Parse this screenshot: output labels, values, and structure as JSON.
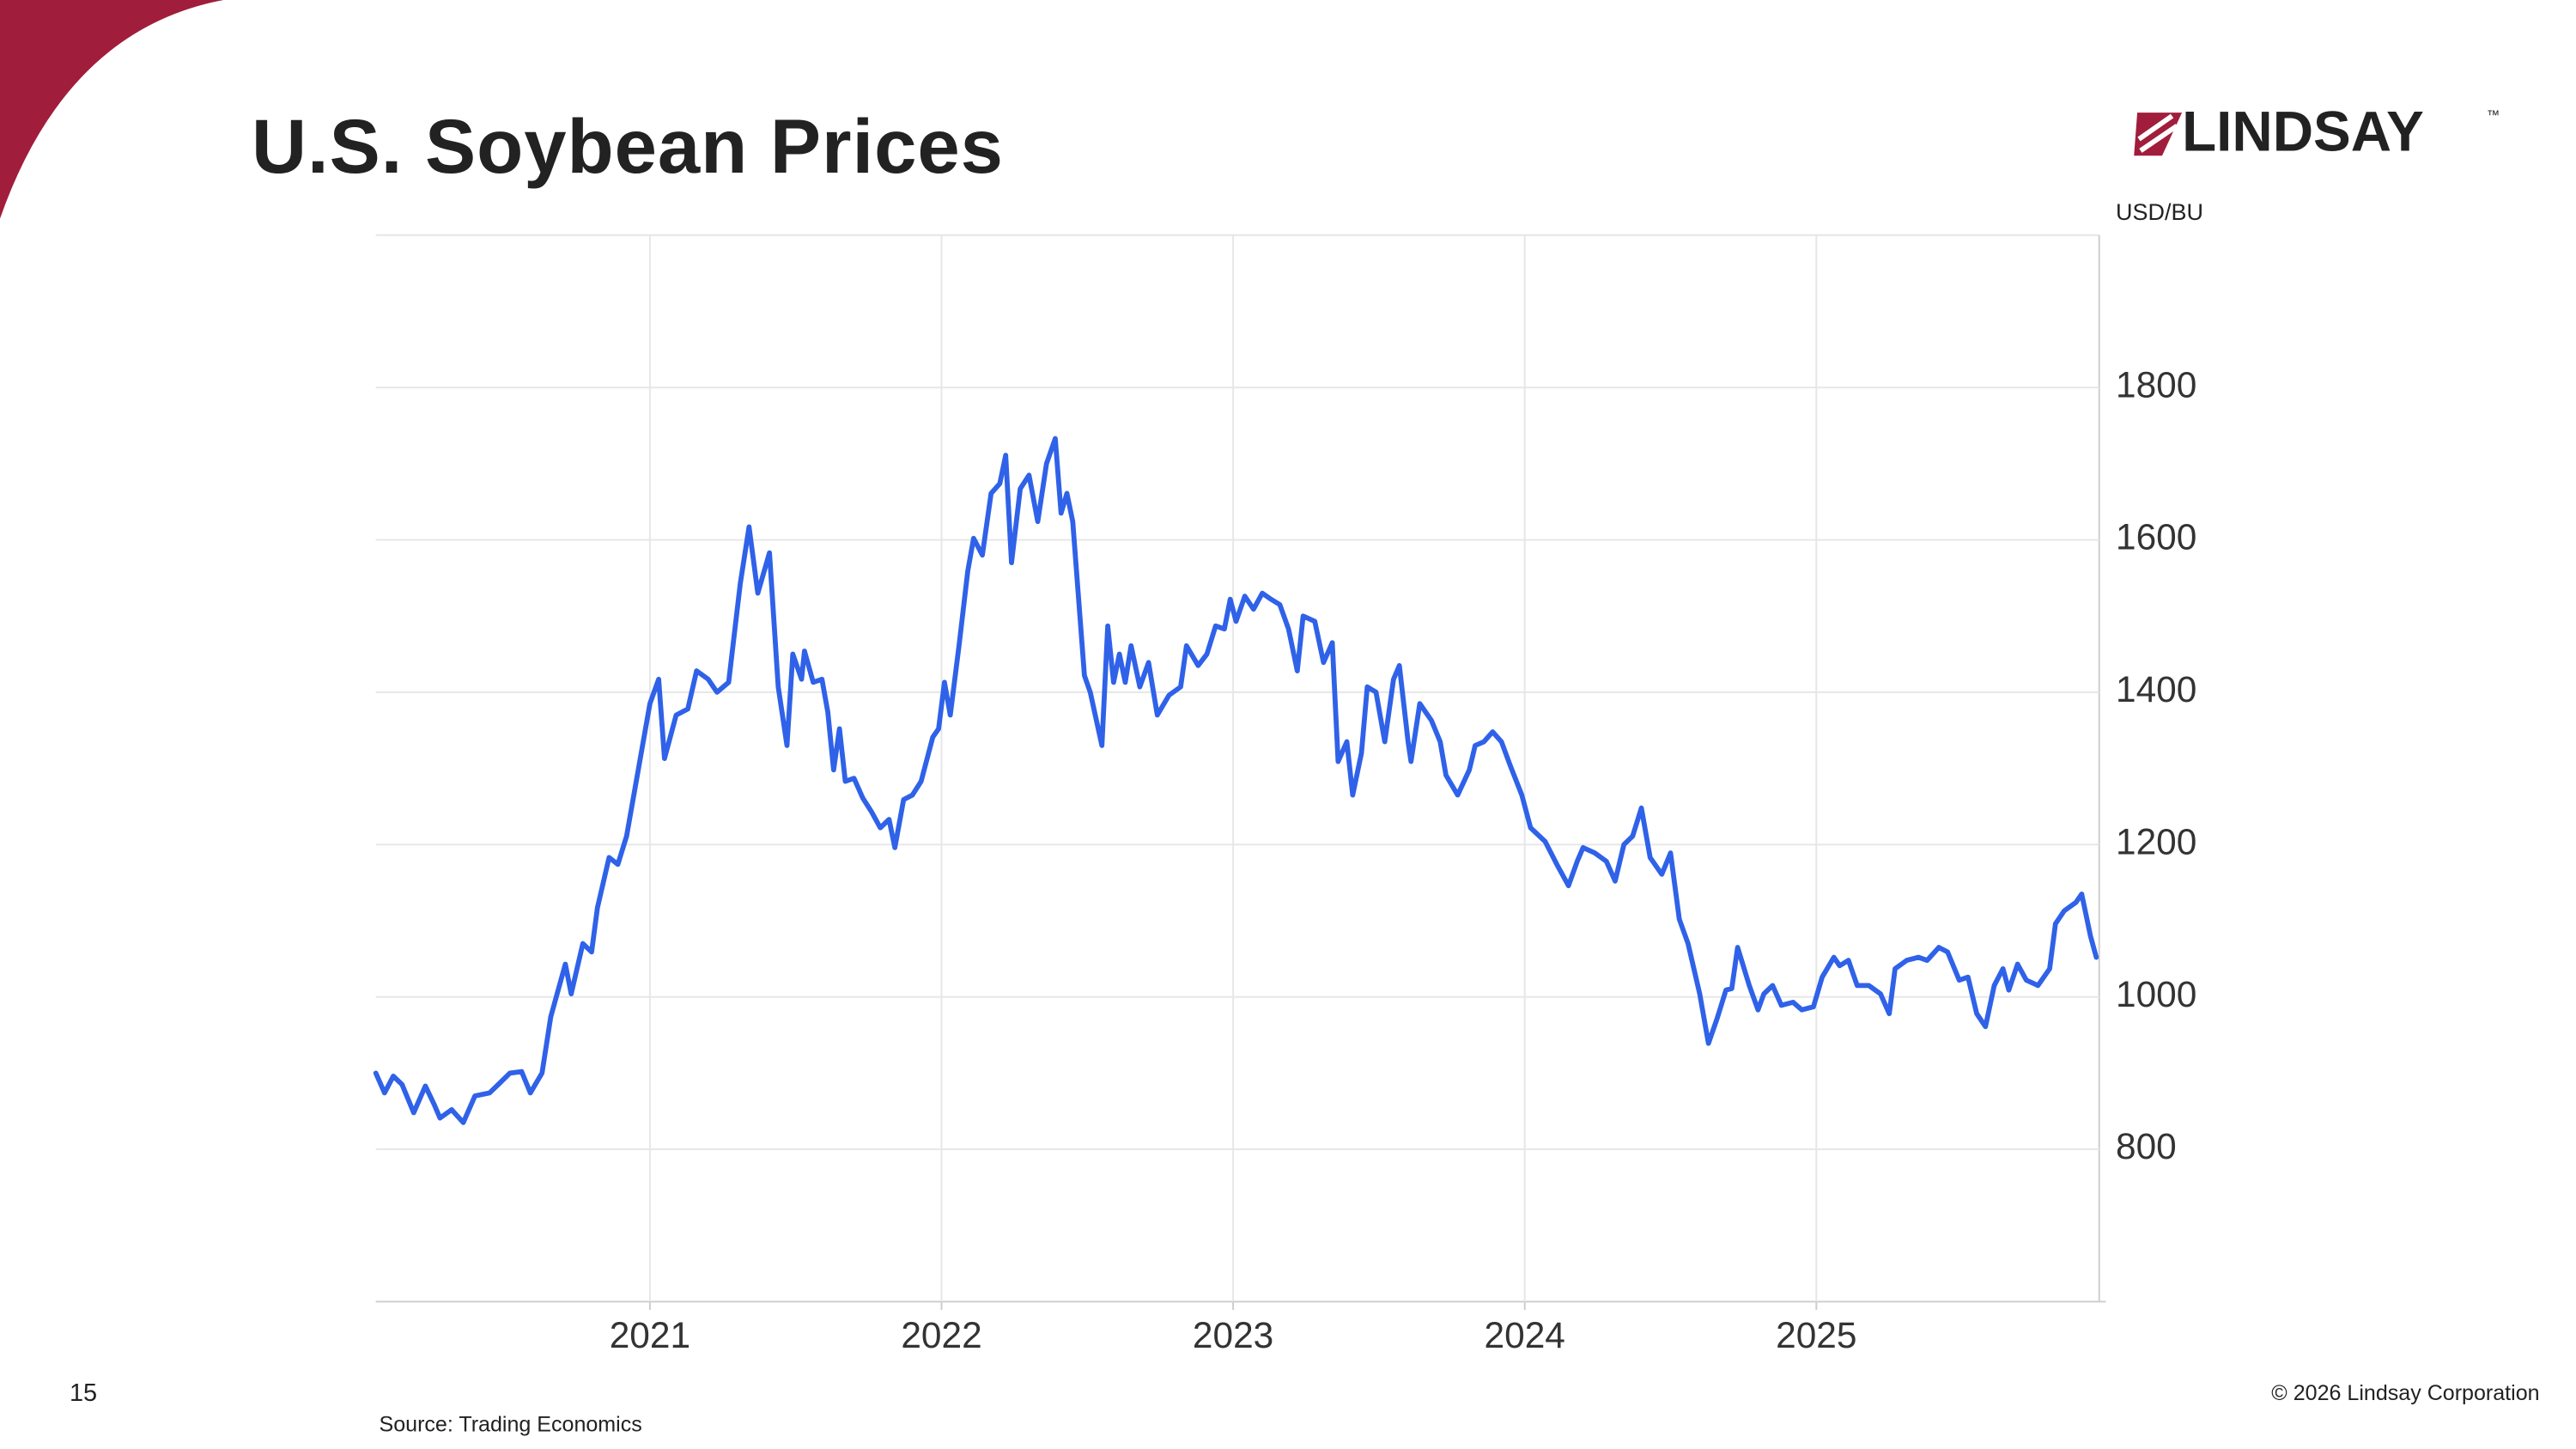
{
  "slide": {
    "logo": "LINDSAY",
    "logo_mark": "™",
    "page_number": "15",
    "copyright": "© 2026 Lindsay Corporation",
    "source": "Source: Trading Economics"
  },
  "chart_data": {
    "type": "line",
    "title": "U.S. Soybean Prices",
    "y_label": "USD/BU",
    "x": [
      2020.06,
      2020.09,
      2020.12,
      2020.15,
      2020.19,
      2020.23,
      2020.26,
      2020.28,
      2020.32,
      2020.36,
      2020.4,
      2020.45,
      2020.48,
      2020.52,
      2020.56,
      2020.59,
      2020.63,
      2020.66,
      2020.71,
      2020.73,
      2020.77,
      2020.8,
      2020.82,
      2020.86,
      2020.89,
      2020.92,
      2020.96,
      2021.0,
      2021.03,
      2021.05,
      2021.09,
      2021.13,
      2021.16,
      2021.2,
      2021.23,
      2021.27,
      2021.31,
      2021.34,
      2021.37,
      2021.41,
      2021.44,
      2021.47,
      2021.49,
      2021.52,
      2021.53,
      2021.56,
      2021.59,
      2021.61,
      2021.63,
      2021.65,
      2021.67,
      2021.7,
      2021.73,
      2021.76,
      2021.79,
      2021.82,
      2021.84,
      2021.87,
      2021.9,
      2021.93,
      2021.97,
      2021.99,
      2022.01,
      2022.03,
      2022.06,
      2022.09,
      2022.11,
      2022.14,
      2022.17,
      2022.2,
      2022.22,
      2022.24,
      2022.27,
      2022.3,
      2022.33,
      2022.36,
      2022.39,
      2022.41,
      2022.43,
      2022.45,
      2022.49,
      2022.51,
      2022.55,
      2022.57,
      2022.59,
      2022.61,
      2022.63,
      2022.65,
      2022.68,
      2022.71,
      2022.74,
      2022.78,
      2022.82,
      2022.84,
      2022.88,
      2022.91,
      2022.94,
      2022.97,
      2022.99,
      2023.01,
      2023.04,
      2023.07,
      2023.1,
      2023.13,
      2023.16,
      2023.19,
      2023.22,
      2023.24,
      2023.28,
      2023.31,
      2023.34,
      2023.36,
      2023.39,
      2023.41,
      2023.44,
      2023.46,
      2023.49,
      2023.52,
      2023.55,
      2023.57,
      2023.6,
      2023.61,
      2023.64,
      2023.68,
      2023.71,
      2023.73,
      2023.77,
      2023.81,
      2023.83,
      2023.86,
      2023.89,
      2023.92,
      2023.95,
      2023.99,
      2024.02,
      2024.07,
      2024.11,
      2024.15,
      2024.18,
      2024.2,
      2024.24,
      2024.28,
      2024.31,
      2024.34,
      2024.37,
      2024.4,
      2024.43,
      2024.47,
      2024.5,
      2024.53,
      2024.56,
      2024.6,
      2024.63,
      2024.66,
      2024.69,
      2024.71,
      2024.73,
      2024.77,
      2024.8,
      2024.82,
      2024.85,
      2024.88,
      2024.92,
      2024.95,
      2024.99,
      2025.02,
      2025.06,
      2025.08,
      2025.11,
      2025.14,
      2025.18,
      2025.22,
      2025.25,
      2025.27,
      2025.31,
      2025.35,
      2025.38,
      2025.42,
      2025.45,
      2025.49,
      2025.52,
      2025.55,
      2025.58,
      2025.61,
      2025.64,
      2025.66,
      2025.69,
      2025.72,
      2025.76,
      2025.8,
      2025.82,
      2025.85,
      2025.89,
      2025.91,
      2025.94,
      2025.96
    ],
    "series": [
      {
        "name": "U.S. Soybean",
        "color": "#2f62e8",
        "values": [
          900,
          874,
          896,
          885,
          848,
          883,
          859,
          841,
          852,
          835,
          870,
          874,
          885,
          900,
          902,
          874,
          900,
          974,
          1043,
          1004,
          1070,
          1059,
          1117,
          1183,
          1174,
          1211,
          1298,
          1385,
          1417,
          1313,
          1370,
          1378,
          1428,
          1417,
          1400,
          1413,
          1543,
          1617,
          1530,
          1583,
          1407,
          1330,
          1450,
          1417,
          1454,
          1413,
          1417,
          1374,
          1298,
          1352,
          1283,
          1287,
          1261,
          1243,
          1222,
          1233,
          1196,
          1259,
          1265,
          1283,
          1341,
          1352,
          1413,
          1370,
          1461,
          1559,
          1602,
          1580,
          1661,
          1674,
          1711,
          1570,
          1667,
          1685,
          1624,
          1700,
          1733,
          1635,
          1661,
          1624,
          1422,
          1400,
          1330,
          1487,
          1413,
          1450,
          1413,
          1461,
          1407,
          1439,
          1370,
          1396,
          1407,
          1461,
          1435,
          1450,
          1487,
          1483,
          1522,
          1493,
          1526,
          1509,
          1530,
          1522,
          1515,
          1483,
          1428,
          1500,
          1493,
          1439,
          1465,
          1309,
          1335,
          1265,
          1320,
          1407,
          1400,
          1335,
          1417,
          1435,
          1335,
          1309,
          1385,
          1363,
          1335,
          1291,
          1265,
          1298,
          1330,
          1335,
          1348,
          1335,
          1304,
          1265,
          1222,
          1204,
          1174,
          1146,
          1178,
          1196,
          1189,
          1178,
          1152,
          1200,
          1211,
          1248,
          1183,
          1161,
          1189,
          1102,
          1070,
          1004,
          939,
          972,
          1009,
          1011,
          1065,
          1015,
          983,
          1004,
          1015,
          989,
          993,
          983,
          987,
          1026,
          1052,
          1041,
          1048,
          1015,
          1015,
          1004,
          978,
          1037,
          1048,
          1052,
          1048,
          1065,
          1059,
          1022,
          1026,
          978,
          961,
          1015,
          1037,
          1009,
          1043,
          1022,
          1015,
          1037,
          1096,
          1113,
          1124,
          1135,
          1080,
          1052
        ]
      }
    ],
    "xlim": [
      2020.06,
      2025.97
    ],
    "xticks": [
      2021,
      2022,
      2023,
      2024,
      2025
    ],
    "ylim": [
      600,
      2000
    ],
    "yticks": [
      800,
      1000,
      1200,
      1400,
      1600,
      1800
    ],
    "grid": true
  }
}
